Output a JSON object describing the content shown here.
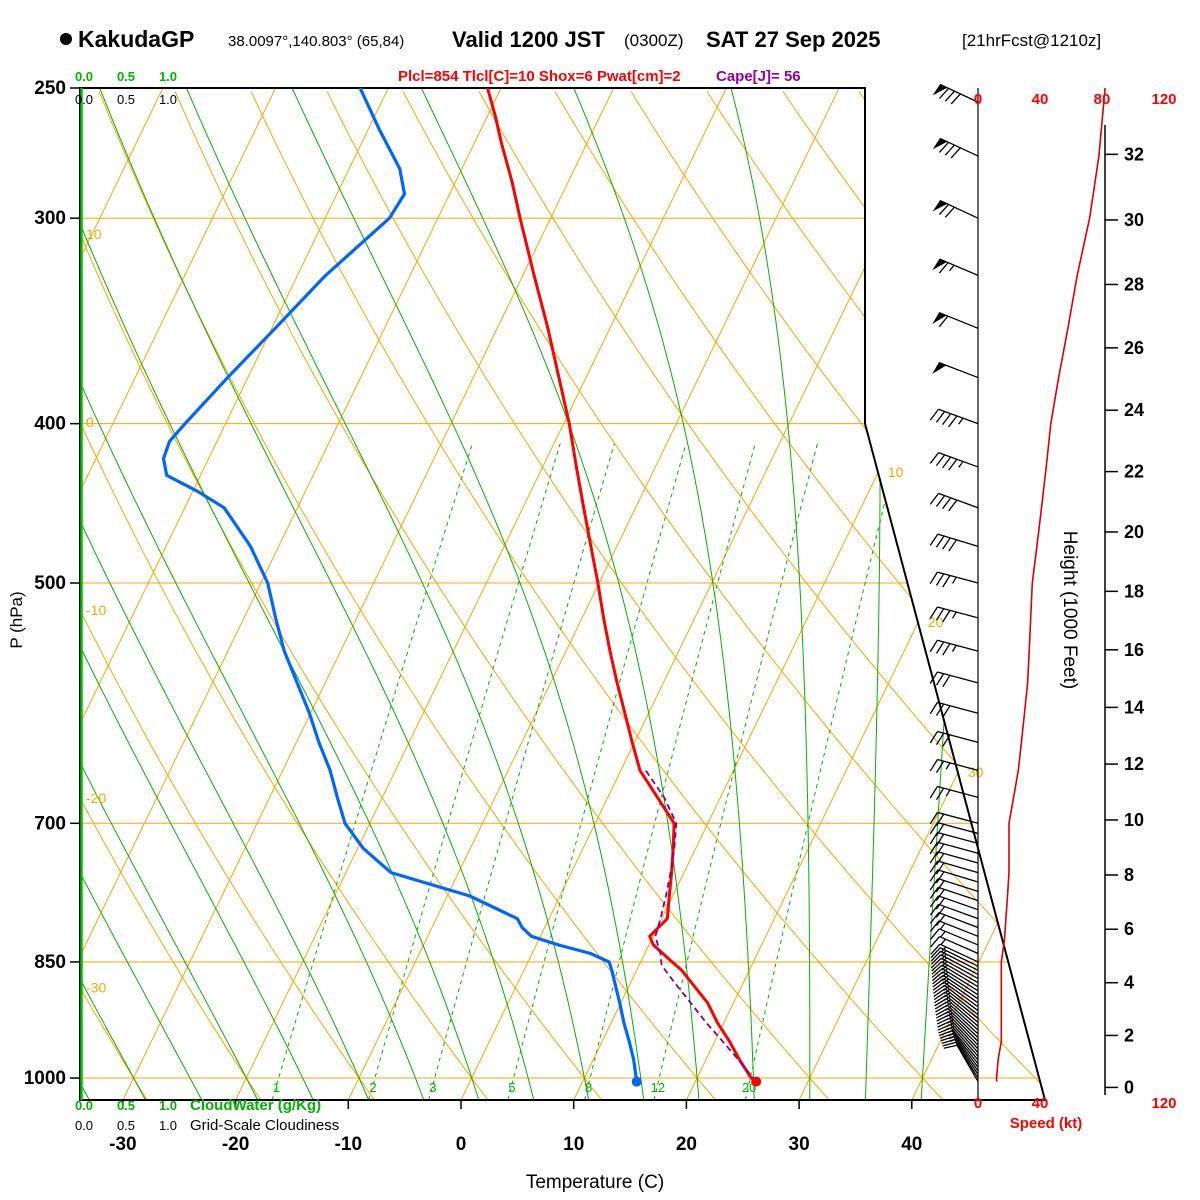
{
  "header": {
    "station": "KakudaGP",
    "coords_grid": "38.0097°,140.803° (65,84)",
    "valid_main": "Valid 1200 JST",
    "valid_z": "(0300Z)",
    "valid_date": "SAT 27 Sep 2025",
    "forecast": "[21hrFcst@1210z]",
    "params": "Plcl=854 Tlcl[C]=10 Shox=6 Pwat[cm]=2",
    "cape": "Cape[J]= 56"
  },
  "axes": {
    "pressure": {
      "title": "P (hPa)",
      "ticks": [
        250,
        300,
        400,
        500,
        700,
        850,
        1000
      ]
    },
    "temperature": {
      "title": "Temperature (C)",
      "ticks": [
        -30,
        -20,
        -10,
        0,
        10,
        20,
        30,
        40
      ]
    },
    "height": {
      "title": "Height (1000 Feet)",
      "ticks": [
        0,
        2,
        4,
        6,
        8,
        10,
        12,
        14,
        16,
        18,
        20,
        22,
        24,
        26,
        28,
        30,
        32
      ]
    },
    "speed": {
      "title": "Speed (kt)",
      "top_ticks": [
        0,
        40,
        80,
        120
      ],
      "bottom_ticks": [
        0,
        40,
        120
      ]
    },
    "cloudwater": {
      "title": "CloudWater (g/Kg)",
      "ticks": [
        "0.0",
        "0.5",
        "1.0"
      ]
    },
    "cloudiness": {
      "title": "Grid-Scale Cloudiness",
      "ticks": [
        "0.0",
        "0.5",
        "1.0"
      ]
    }
  },
  "chart_data": {
    "type": "line",
    "subtype": "skew-t-log-p-sounding",
    "title": "KakudaGP Valid 1200 JST (0300Z) SAT 27 Sep 2025 [21hrFcst@1210z]",
    "parameters": {
      "Plcl_hPa": 854,
      "Tlcl_C": 10,
      "Showalter": 6,
      "Pwat_cm": 2,
      "Cape_J": 56
    },
    "pressure_range_hPa": [
      1031,
      250
    ],
    "temperature_axis_range_C": [
      -30,
      40
    ],
    "series": [
      {
        "name": "temperature",
        "units": [
          "hPa",
          "C"
        ],
        "points": [
          [
            1005,
            25.4
          ],
          [
            1000,
            24.8
          ],
          [
            975,
            23.0
          ],
          [
            950,
            21.3
          ],
          [
            925,
            19.4
          ],
          [
            900,
            17.7
          ],
          [
            875,
            15.4
          ],
          [
            860,
            14.0
          ],
          [
            850,
            12.8
          ],
          [
            840,
            11.6
          ],
          [
            830,
            10.4
          ],
          [
            820,
            9.7
          ],
          [
            810,
            10.1
          ],
          [
            800,
            10.5
          ],
          [
            775,
            9.7
          ],
          [
            750,
            8.9
          ],
          [
            725,
            8.0
          ],
          [
            700,
            7.0
          ],
          [
            675,
            4.4
          ],
          [
            650,
            1.7
          ],
          [
            625,
            -0.2
          ],
          [
            600,
            -2.1
          ],
          [
            575,
            -4.1
          ],
          [
            550,
            -6.1
          ],
          [
            525,
            -8.1
          ],
          [
            500,
            -10.1
          ],
          [
            475,
            -12.3
          ],
          [
            450,
            -14.6
          ],
          [
            425,
            -17.0
          ],
          [
            400,
            -19.5
          ],
          [
            375,
            -22.4
          ],
          [
            350,
            -25.5
          ],
          [
            325,
            -29.0
          ],
          [
            300,
            -32.7
          ],
          [
            285,
            -35.0
          ],
          [
            270,
            -37.6
          ],
          [
            260,
            -39.3
          ],
          [
            250,
            -41.2
          ]
        ]
      },
      {
        "name": "dewpoint",
        "units": [
          "hPa",
          "C"
        ],
        "points": [
          [
            1005,
            14.8
          ],
          [
            1000,
            14.6
          ],
          [
            975,
            13.6
          ],
          [
            950,
            12.4
          ],
          [
            925,
            11.1
          ],
          [
            900,
            9.9
          ],
          [
            875,
            8.6
          ],
          [
            860,
            7.8
          ],
          [
            850,
            7.2
          ],
          [
            840,
            5.2
          ],
          [
            830,
            2.0
          ],
          [
            820,
            -0.8
          ],
          [
            810,
            -2.0
          ],
          [
            800,
            -2.8
          ],
          [
            775,
            -8.0
          ],
          [
            750,
            -16.0
          ],
          [
            725,
            -19.5
          ],
          [
            700,
            -22.2
          ],
          [
            675,
            -24.0
          ],
          [
            650,
            -25.8
          ],
          [
            625,
            -28.0
          ],
          [
            600,
            -30.1
          ],
          [
            575,
            -32.5
          ],
          [
            550,
            -35.0
          ],
          [
            525,
            -37.2
          ],
          [
            500,
            -39.4
          ],
          [
            475,
            -42.5
          ],
          [
            450,
            -46.5
          ],
          [
            440,
            -49.5
          ],
          [
            430,
            -53.0
          ],
          [
            420,
            -54.0
          ],
          [
            410,
            -54.2
          ],
          [
            400,
            -53.6
          ],
          [
            375,
            -51.8
          ],
          [
            350,
            -49.7
          ],
          [
            325,
            -47.5
          ],
          [
            300,
            -44.3
          ],
          [
            290,
            -44.0
          ],
          [
            280,
            -45.5
          ],
          [
            265,
            -49.0
          ],
          [
            250,
            -52.5
          ]
        ]
      },
      {
        "name": "parcel_path",
        "units": [
          "hPa",
          "C"
        ],
        "dashed": true,
        "points": [
          [
            1005,
            25.4
          ],
          [
            975,
            22.9
          ],
          [
            950,
            20.7
          ],
          [
            925,
            18.4
          ],
          [
            900,
            16.2
          ],
          [
            875,
            13.9
          ],
          [
            854,
            12.0
          ],
          [
            840,
            11.4
          ],
          [
            820,
            10.2
          ],
          [
            800,
            9.9
          ],
          [
            775,
            9.4
          ],
          [
            750,
            8.8
          ],
          [
            725,
            8.1
          ],
          [
            700,
            7.2
          ],
          [
            675,
            5.0
          ],
          [
            650,
            2.2
          ]
        ]
      }
    ],
    "wind_profile": [
      [
        1005,
        12,
        330
      ],
      [
        1000,
        12,
        328
      ],
      [
        975,
        13,
        320
      ],
      [
        950,
        15,
        315
      ],
      [
        925,
        15,
        310
      ],
      [
        900,
        15,
        305
      ],
      [
        875,
        15,
        300
      ],
      [
        850,
        15,
        295
      ],
      [
        825,
        17,
        292
      ],
      [
        800,
        18,
        290
      ],
      [
        775,
        19,
        288
      ],
      [
        750,
        20,
        286
      ],
      [
        725,
        20,
        285
      ],
      [
        700,
        20,
        285
      ],
      [
        675,
        23,
        285
      ],
      [
        650,
        26,
        285
      ],
      [
        625,
        28,
        285
      ],
      [
        600,
        30,
        285
      ],
      [
        575,
        32,
        285
      ],
      [
        550,
        33,
        285
      ],
      [
        525,
        34,
        285
      ],
      [
        500,
        35,
        285
      ],
      [
        475,
        38,
        287
      ],
      [
        450,
        41,
        290
      ],
      [
        425,
        44,
        290
      ],
      [
        400,
        47,
        290
      ],
      [
        375,
        52,
        291
      ],
      [
        350,
        58,
        292
      ],
      [
        325,
        64,
        293
      ],
      [
        300,
        72,
        295
      ],
      [
        275,
        78,
        295
      ],
      [
        250,
        82,
        295
      ]
    ],
    "barb_pressures": [
      1005,
      1000,
      995,
      990,
      985,
      980,
      975,
      970,
      965,
      960,
      955,
      950,
      945,
      940,
      935,
      930,
      925,
      920,
      915,
      910,
      905,
      900,
      895,
      890,
      885,
      880,
      875,
      870,
      865,
      860,
      855,
      850,
      840,
      830,
      820,
      810,
      800,
      790,
      780,
      770,
      760,
      750,
      740,
      730,
      720,
      710,
      700,
      675,
      650,
      625,
      600,
      575,
      550,
      525,
      500,
      475,
      450,
      425,
      400,
      375,
      350,
      325,
      300,
      275,
      255
    ],
    "surface_markers": {
      "temperature": {
        "p": 1005,
        "t": 25.4
      },
      "dewpoint": {
        "p": 1005,
        "t": 14.8
      }
    },
    "cloudwater_profile": {
      "constant_g_kg": 0
    },
    "cloudiness_profile": {
      "constant": 0
    },
    "grid": {
      "isotherm_step_C": 10,
      "isotherm_labels": [
        0,
        10,
        20,
        30
      ],
      "dry_adiabat_step_C": 10,
      "dry_adiabat_labels": [
        10,
        0,
        -10,
        -20,
        -30
      ],
      "moist_adiabat_step_C": 5,
      "mixing_ratio_lines_g_kg": [
        1,
        2,
        3,
        5,
        8,
        12,
        20
      ]
    },
    "colors": {
      "grid_orange": "#ffa500",
      "grid_green": "#00b300",
      "temperature": "#ff0000",
      "dewpoint": "#0066ff",
      "parcel": "#880088",
      "wind_speed": "#dd0000",
      "barbs": "#000000",
      "params_red": "#ff0000",
      "cape_purple": "#990099"
    }
  }
}
